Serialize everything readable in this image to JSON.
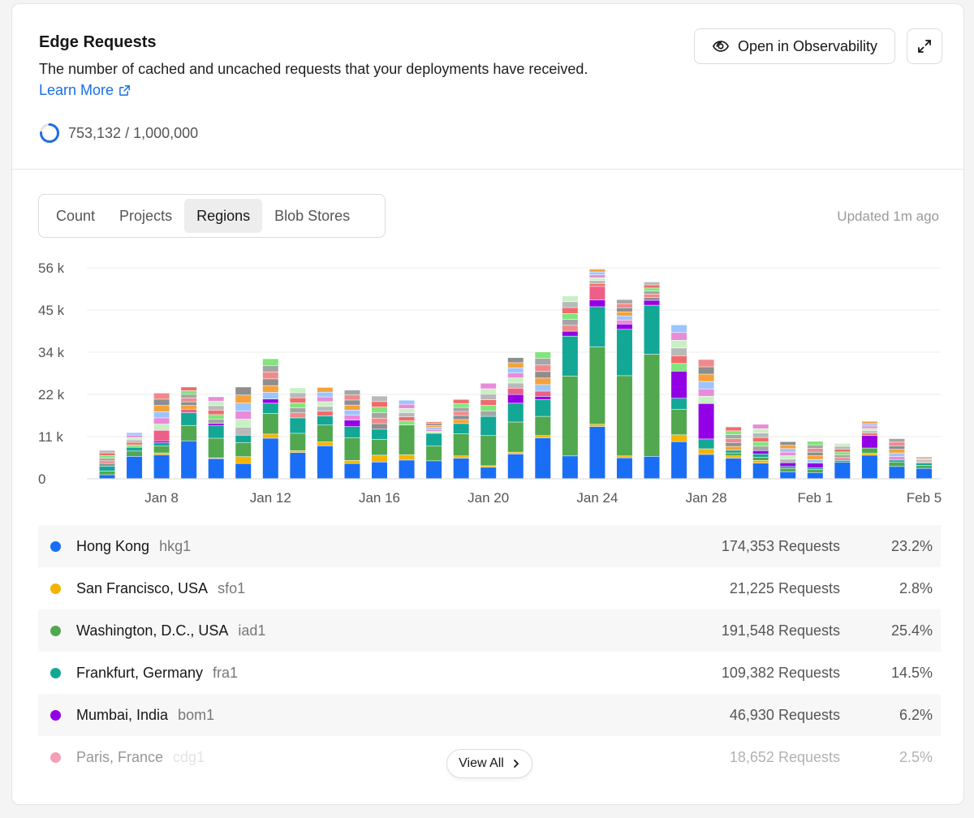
{
  "header": {
    "title": "Edge Requests",
    "description": "The number of cached and uncached requests that your deployments have received.",
    "learn_more": "Learn More",
    "usage_text": "753,132 / 1,000,000",
    "usage_fraction": 0.753132,
    "open_button": "Open in Observability"
  },
  "tabs": [
    {
      "label": "Count",
      "active": false
    },
    {
      "label": "Projects",
      "active": false
    },
    {
      "label": "Regions",
      "active": true
    },
    {
      "label": "Blob Stores",
      "active": false
    }
  ],
  "updated": "Updated 1m ago",
  "colors": {
    "accent": "#1a6de6",
    "hkg1": "#1a6ef5",
    "sfo1": "#f5b400",
    "iad1": "#51a84f",
    "fra1": "#13a796",
    "bom1": "#9300e6",
    "cdg1": "#ee5f87",
    "other_palette": [
      "#8e8e8e",
      "#f08a8a",
      "#a5a5a5",
      "#82e57c",
      "#f06b6b",
      "#b9b9b9",
      "#c9f0c5",
      "#e98bd9",
      "#9ec4ff",
      "#f4a23c"
    ]
  },
  "chart_data": {
    "type": "bar",
    "stacked": true,
    "y_ticks": [
      "0",
      "11 k",
      "22 k",
      "34 k",
      "45 k",
      "56 k"
    ],
    "ylim": [
      0,
      56000
    ],
    "x_tick_labels": [
      "Jan 8",
      "Jan 12",
      "Jan 16",
      "Jan 20",
      "Jan 24",
      "Jan 28",
      "Feb 1",
      "Feb 5"
    ],
    "x_tick_indices": [
      2,
      6,
      10,
      14,
      18,
      22,
      26,
      30
    ],
    "grid": true,
    "categories": [
      "Jan 6",
      "Jan 7",
      "Jan 8",
      "Jan 9",
      "Jan 10",
      "Jan 11",
      "Jan 12",
      "Jan 13",
      "Jan 14",
      "Jan 15",
      "Jan 16",
      "Jan 17",
      "Jan 18",
      "Jan 19",
      "Jan 20",
      "Jan 21",
      "Jan 22",
      "Jan 23",
      "Jan 24",
      "Jan 25",
      "Jan 26",
      "Jan 27",
      "Jan 28",
      "Jan 29",
      "Jan 30",
      "Jan 31",
      "Feb 1",
      "Feb 2",
      "Feb 3",
      "Feb 4",
      "Feb 5"
    ],
    "series": [
      {
        "key": "hkg1",
        "values": [
          1000,
          5900,
          6300,
          10000,
          5300,
          4000,
          10700,
          6900,
          8700,
          4000,
          4400,
          4900,
          4700,
          5400,
          3000,
          6500,
          10800,
          6000,
          13800,
          5500,
          5900,
          9800,
          6400,
          5400,
          4100,
          1800,
          1600,
          4300,
          6200,
          3200,
          2700
        ]
      },
      {
        "key": "sfo1",
        "values": [
          0,
          0,
          500,
          0,
          200,
          1800,
          1100,
          500,
          1000,
          800,
          1800,
          1400,
          0,
          600,
          400,
          500,
          600,
          0,
          600,
          500,
          0,
          1800,
          1500,
          600,
          700,
          0,
          0,
          0,
          500,
          0,
          0
        ]
      },
      {
        "key": "iad1",
        "values": [
          1000,
          1400,
          1800,
          4100,
          5200,
          3700,
          5500,
          4600,
          4500,
          6000,
          4200,
          7900,
          3900,
          5900,
          8000,
          8000,
          5100,
          21200,
          20500,
          21300,
          27100,
          6800,
          0,
          800,
          800,
          900,
          800,
          0,
          1400,
          1100,
          800
        ]
      },
      {
        "key": "fra1",
        "values": [
          1300,
          1000,
          900,
          3400,
          3300,
          2000,
          2700,
          4100,
          2400,
          3000,
          2700,
          0,
          3400,
          2700,
          5100,
          5000,
          4500,
          10600,
          10700,
          12300,
          13000,
          2900,
          2600,
          700,
          900,
          500,
          400,
          500,
          0,
          600,
          600
        ]
      },
      {
        "key": "bom1",
        "values": [
          0,
          0,
          500,
          0,
          600,
          0,
          1100,
          0,
          0,
          1700,
          0,
          0,
          0,
          0,
          0,
          2300,
          800,
          1300,
          1800,
          1400,
          1300,
          7200,
          9400,
          0,
          900,
          1000,
          1300,
          0,
          3300,
          0,
          0
        ]
      },
      {
        "key": "cdg1",
        "values": [
          0,
          0,
          2800,
          900,
          0,
          0,
          0,
          0,
          0,
          0,
          0,
          0,
          0,
          0,
          0,
          1700,
          1400,
          0,
          3600,
          0,
          0,
          0,
          0,
          0,
          0,
          0,
          0,
          0,
          0,
          0,
          0
        ]
      },
      {
        "key": "other",
        "values": [
          4200,
          3900,
          9900,
          5900,
          7100,
          12800,
          10700,
          8000,
          7600,
          8000,
          8800,
          6600,
          3100,
          6400,
          8800,
          8100,
          10400,
          9400,
          4600,
          6500,
          4900,
          12300,
          11700,
          6200,
          7000,
          5600,
          5800,
          4500,
          3800,
          5700,
          1700
        ]
      }
    ]
  },
  "regions": [
    {
      "key": "hkg1",
      "name": "Hong Kong",
      "code": "hkg1",
      "requests": "174,353 Requests",
      "percent": "23.2%"
    },
    {
      "key": "sfo1",
      "name": "San Francisco, USA",
      "code": "sfo1",
      "requests": "21,225 Requests",
      "percent": "2.8%"
    },
    {
      "key": "iad1",
      "name": "Washington, D.C., USA",
      "code": "iad1",
      "requests": "191,548 Requests",
      "percent": "25.4%"
    },
    {
      "key": "fra1",
      "name": "Frankfurt, Germany",
      "code": "fra1",
      "requests": "109,382 Requests",
      "percent": "14.5%"
    },
    {
      "key": "bom1",
      "name": "Mumbai, India",
      "code": "bom1",
      "requests": "46,930 Requests",
      "percent": "6.2%"
    },
    {
      "key": "cdg1",
      "name": "Paris, France",
      "code": "cdg1",
      "requests": "18,652 Requests",
      "percent": "2.5%"
    }
  ],
  "view_all": "View All"
}
